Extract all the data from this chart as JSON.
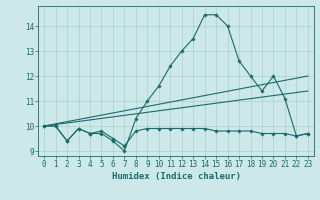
{
  "title": "",
  "xlabel": "Humidex (Indice chaleur)",
  "bg_color": "#cce8e8",
  "line_color": "#1a6b6b",
  "xlim": [
    -0.5,
    23.5
  ],
  "ylim": [
    8.8,
    14.8
  ],
  "xticks": [
    0,
    1,
    2,
    3,
    4,
    5,
    6,
    7,
    8,
    9,
    10,
    11,
    12,
    13,
    14,
    15,
    16,
    17,
    18,
    19,
    20,
    21,
    22,
    23
  ],
  "yticks": [
    9,
    10,
    11,
    12,
    13,
    14
  ],
  "series": [
    {
      "x": [
        0,
        1,
        2,
        3,
        4,
        5,
        6,
        7,
        8,
        9,
        10,
        11,
        12,
        13,
        14,
        15,
        16,
        17,
        18,
        19,
        20,
        21,
        22,
        23
      ],
      "y": [
        10.0,
        10.0,
        9.4,
        9.9,
        9.7,
        9.7,
        9.4,
        9.0,
        10.3,
        11.0,
        11.6,
        12.4,
        13.0,
        13.5,
        14.45,
        14.45,
        14.0,
        12.6,
        12.0,
        11.4,
        12.0,
        11.1,
        9.6,
        9.7
      ],
      "marker": true
    },
    {
      "x": [
        0,
        1,
        2,
        3,
        4,
        5,
        6,
        7,
        8,
        9,
        10,
        11,
        12,
        13,
        14,
        15,
        16,
        17,
        18,
        19,
        20,
        21,
        22,
        23
      ],
      "y": [
        10.0,
        10.0,
        9.4,
        9.9,
        9.7,
        9.8,
        9.5,
        9.2,
        9.8,
        9.9,
        9.9,
        9.9,
        9.9,
        9.9,
        9.9,
        9.8,
        9.8,
        9.8,
        9.8,
        9.7,
        9.7,
        9.7,
        9.6,
        9.7
      ],
      "marker": true
    },
    {
      "x": [
        0,
        23
      ],
      "y": [
        10.0,
        12.0
      ],
      "marker": false
    },
    {
      "x": [
        0,
        23
      ],
      "y": [
        10.0,
        11.4
      ],
      "marker": false
    }
  ]
}
